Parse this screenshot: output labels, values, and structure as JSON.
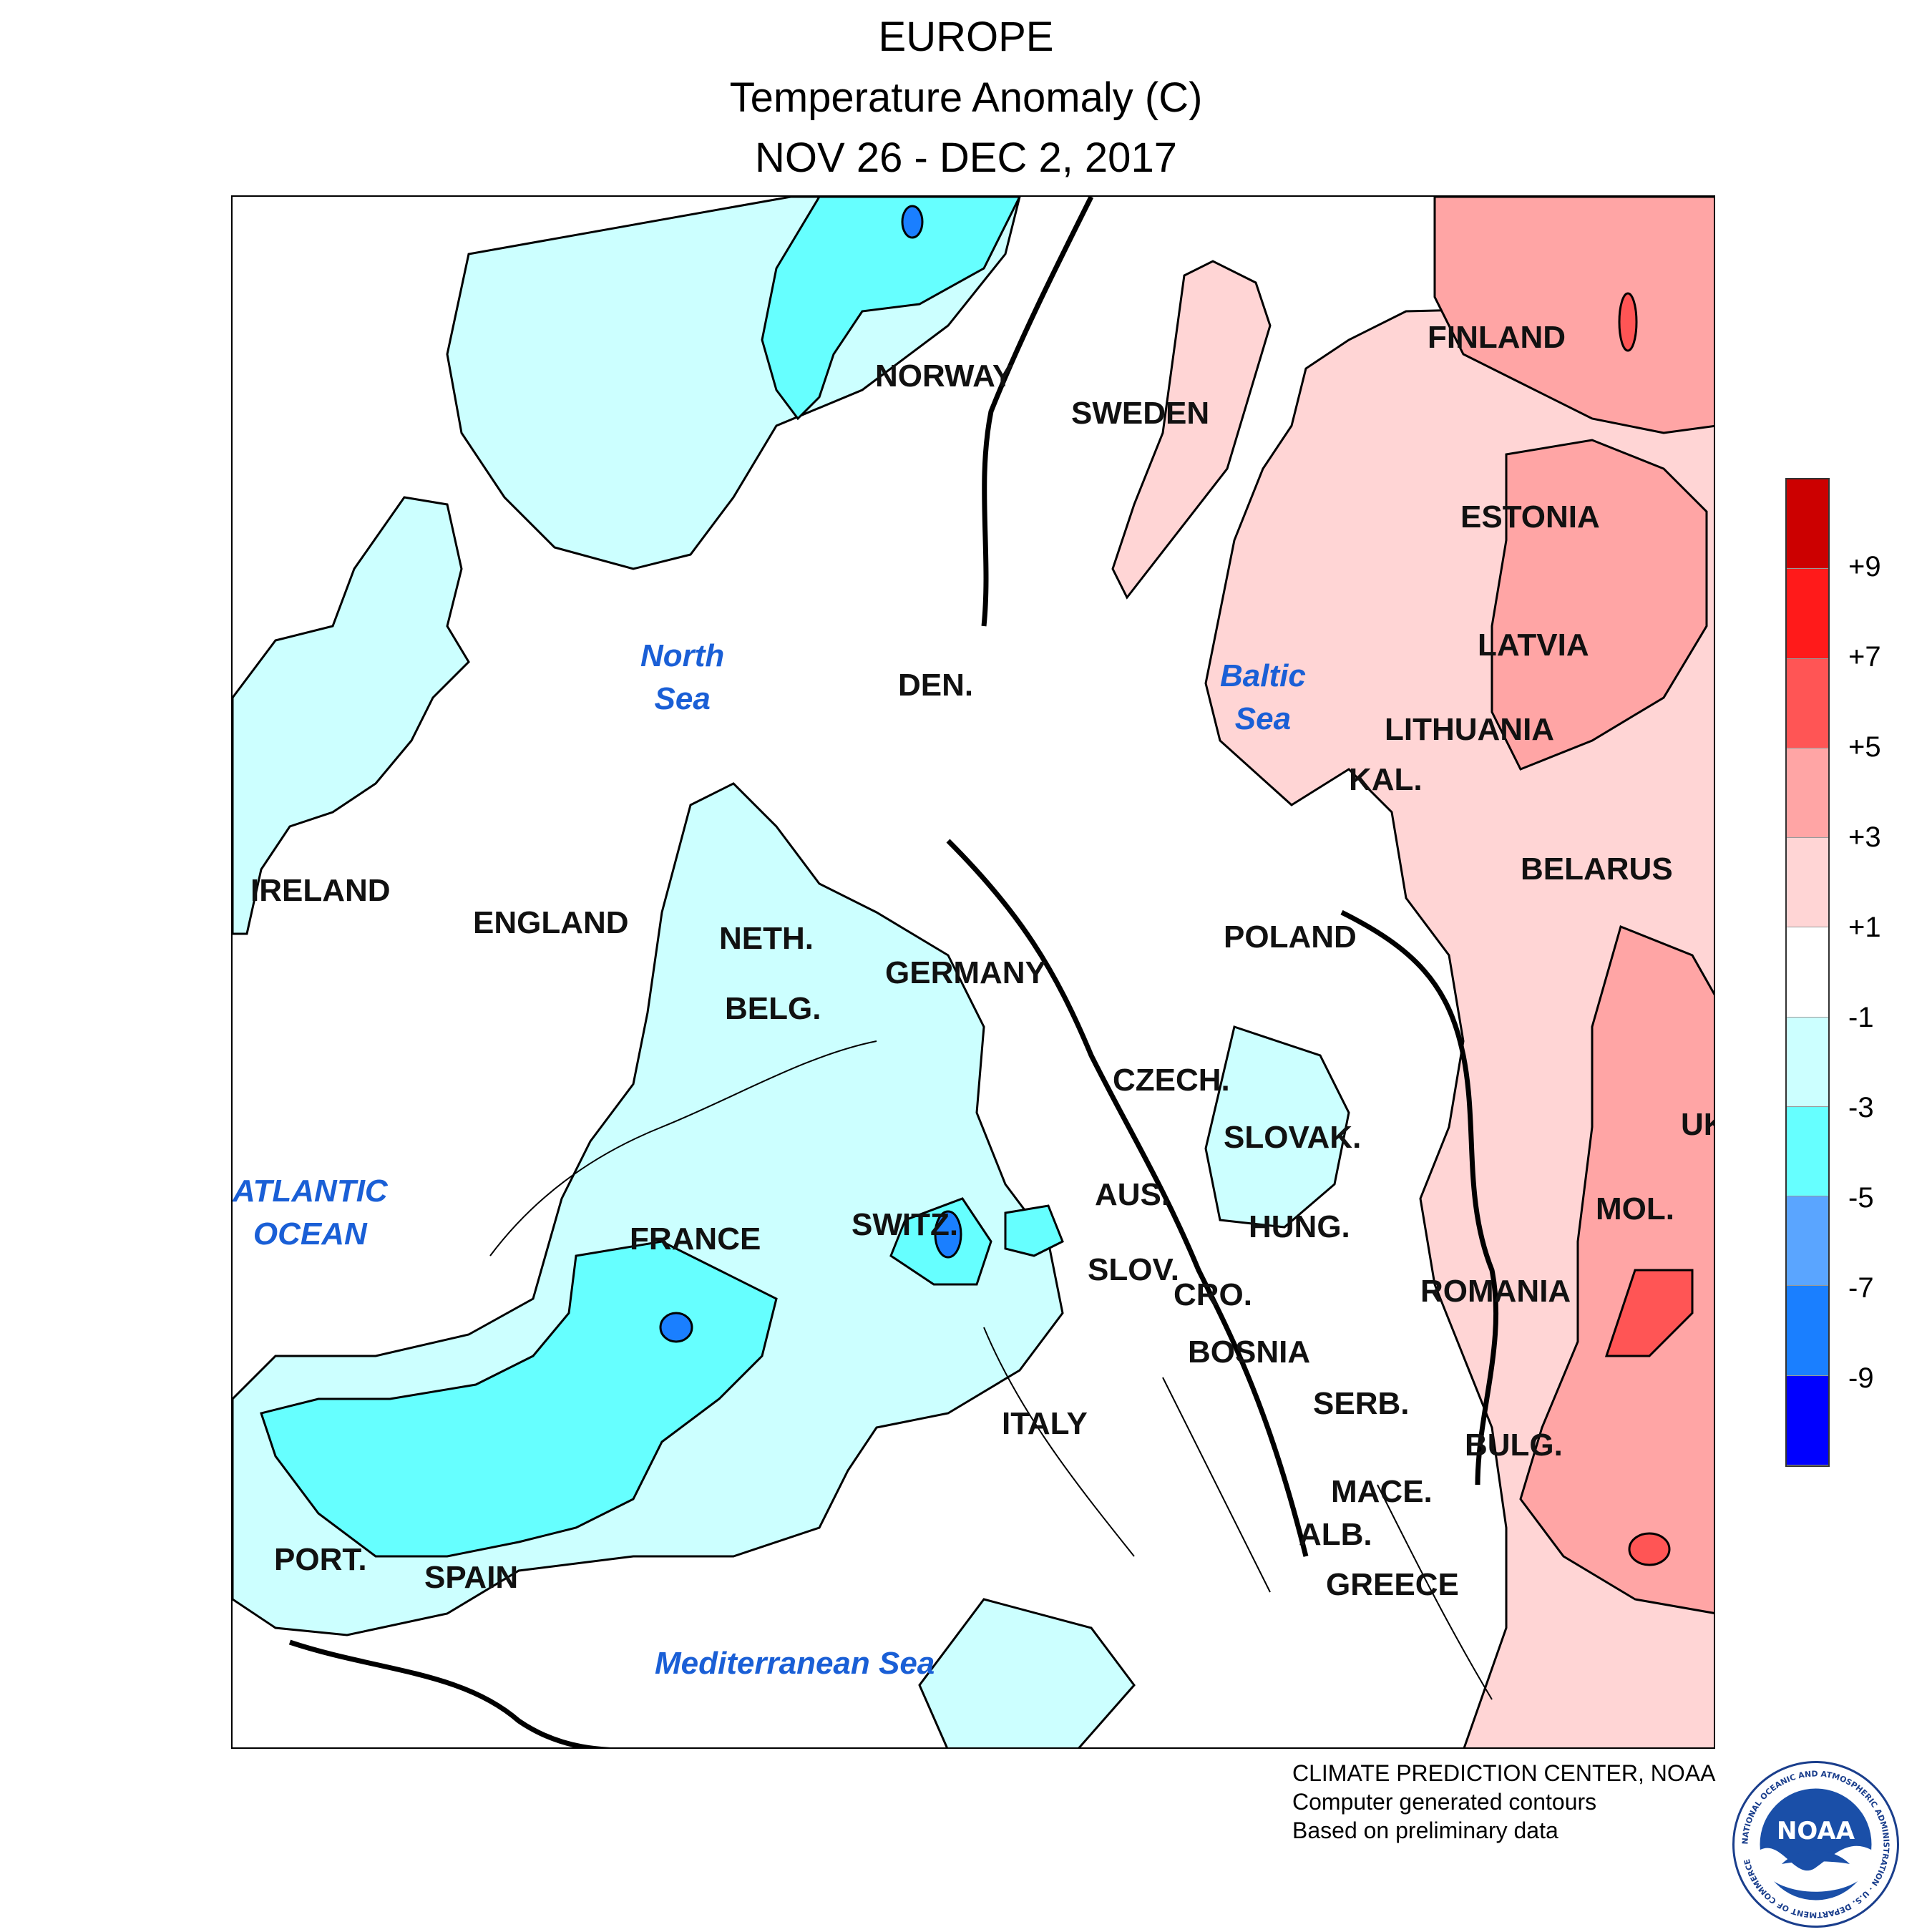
{
  "header": {
    "region": "EUROPE",
    "variable": "Temperature Anomaly (C)",
    "period": "NOV 26 - DEC 2, 2017"
  },
  "map": {
    "countries": [
      "NORWAY",
      "SWEDEN",
      "FINLAND",
      "ESTONIA",
      "LATVIA",
      "LITHUANIA",
      "KAL.",
      "BELARUS",
      "DEN.",
      "IRELAND",
      "ENGLAND",
      "NETH.",
      "BELG.",
      "GERMANY",
      "POLAND",
      "CZECH.",
      "SLOVAK.",
      "UK",
      "AUS.",
      "SWITZ.",
      "FRANCE",
      "HUNG.",
      "MOL.",
      "SLOV.",
      "CRO.",
      "ROMANIA",
      "BOSNIA",
      "SERB.",
      "BULG.",
      "ITALY",
      "MACE.",
      "ALB.",
      "PORT.",
      "SPAIN",
      "GREECE"
    ],
    "water_bodies": [
      {
        "line1": "North",
        "line2": "Sea"
      },
      {
        "line1": "Baltic",
        "line2": "Sea"
      },
      {
        "line1": "ATLANTIC",
        "line2": "OCEAN"
      },
      {
        "line1": "Mediterranean Sea",
        "line2": ""
      }
    ]
  },
  "legend": {
    "colors": [
      "#cc0000",
      "#ff1a1a",
      "#ff5555",
      "#ffa5a5",
      "#ffd5d5",
      "#ffffff",
      "#ccffff",
      "#66ffff",
      "#5aa5ff",
      "#1a7fff",
      "#0000ff"
    ],
    "labels": [
      "+9",
      "+7",
      "+5",
      "+3",
      "+1",
      "-1",
      "-3",
      "-5",
      "-7",
      "-9"
    ]
  },
  "credits": {
    "line1": "CLIMATE PREDICTION CENTER, NOAA",
    "line2": "Computer generated contours",
    "line3": "Based on preliminary data"
  },
  "logo": {
    "text": "NOAA",
    "ring_text": "NATIONAL OCEANIC AND ATMOSPHERIC ADMINISTRATION · U.S. DEPARTMENT OF COMMERCE",
    "icon": "noaa-seal-icon"
  }
}
